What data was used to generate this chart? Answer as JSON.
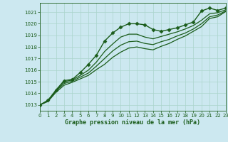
{
  "title": "Graphe pression niveau de la mer (hPa)",
  "bg_color": "#cce8f0",
  "grid_color": "#aad4cc",
  "line_color": "#1a5c1a",
  "xlim": [
    0,
    23
  ],
  "ylim": [
    1012.5,
    1021.8
  ],
  "xticks": [
    0,
    1,
    2,
    3,
    4,
    5,
    6,
    7,
    8,
    9,
    10,
    11,
    12,
    13,
    14,
    15,
    16,
    17,
    18,
    19,
    20,
    21,
    22,
    23
  ],
  "yticks": [
    1013,
    1014,
    1015,
    1016,
    1017,
    1018,
    1019,
    1020,
    1021
  ],
  "series": [
    {
      "x": [
        0,
        1,
        2,
        3,
        4,
        5,
        6,
        7,
        8,
        9,
        10,
        11,
        12,
        13,
        14,
        15,
        16,
        17,
        18,
        19,
        20,
        21,
        22,
        23
      ],
      "y": [
        1013.0,
        1013.4,
        1014.3,
        1015.1,
        1015.2,
        1015.8,
        1016.5,
        1017.3,
        1018.5,
        1019.2,
        1019.7,
        1020.0,
        1020.0,
        1019.9,
        1019.5,
        1019.35,
        1019.5,
        1019.65,
        1019.9,
        1020.15,
        1021.1,
        1021.35,
        1021.15,
        1021.35
      ],
      "marker": "D",
      "markersize": 2.5,
      "linewidth": 1.0,
      "zorder": 5
    },
    {
      "x": [
        0,
        1,
        2,
        3,
        4,
        5,
        6,
        7,
        8,
        9,
        10,
        11,
        12,
        13,
        14,
        15,
        16,
        17,
        18,
        19,
        20,
        21,
        22,
        23
      ],
      "y": [
        1013.0,
        1013.4,
        1014.25,
        1015.0,
        1015.15,
        1015.55,
        1016.0,
        1016.7,
        1017.6,
        1018.25,
        1018.85,
        1019.1,
        1019.1,
        1018.85,
        1018.7,
        1018.9,
        1019.1,
        1019.3,
        1019.55,
        1019.85,
        1020.3,
        1020.85,
        1020.95,
        1021.2
      ],
      "marker": null,
      "markersize": 0,
      "linewidth": 0.9,
      "zorder": 3
    },
    {
      "x": [
        0,
        1,
        2,
        3,
        4,
        5,
        6,
        7,
        8,
        9,
        10,
        11,
        12,
        13,
        14,
        15,
        16,
        17,
        18,
        19,
        20,
        21,
        22,
        23
      ],
      "y": [
        1013.0,
        1013.35,
        1014.2,
        1014.85,
        1015.05,
        1015.4,
        1015.75,
        1016.35,
        1017.0,
        1017.65,
        1018.15,
        1018.45,
        1018.5,
        1018.3,
        1018.2,
        1018.45,
        1018.65,
        1018.95,
        1019.2,
        1019.55,
        1020.0,
        1020.6,
        1020.75,
        1021.1
      ],
      "marker": null,
      "markersize": 0,
      "linewidth": 0.9,
      "zorder": 3
    },
    {
      "x": [
        0,
        1,
        2,
        3,
        4,
        5,
        6,
        7,
        8,
        9,
        10,
        11,
        12,
        13,
        14,
        15,
        16,
        17,
        18,
        19,
        20,
        21,
        22,
        23
      ],
      "y": [
        1013.0,
        1013.3,
        1014.1,
        1014.7,
        1014.95,
        1015.25,
        1015.55,
        1016.05,
        1016.5,
        1017.1,
        1017.55,
        1017.9,
        1018.0,
        1017.85,
        1017.75,
        1018.05,
        1018.3,
        1018.65,
        1018.95,
        1019.35,
        1019.75,
        1020.45,
        1020.6,
        1021.05
      ],
      "marker": null,
      "markersize": 0,
      "linewidth": 0.9,
      "zorder": 3
    }
  ]
}
